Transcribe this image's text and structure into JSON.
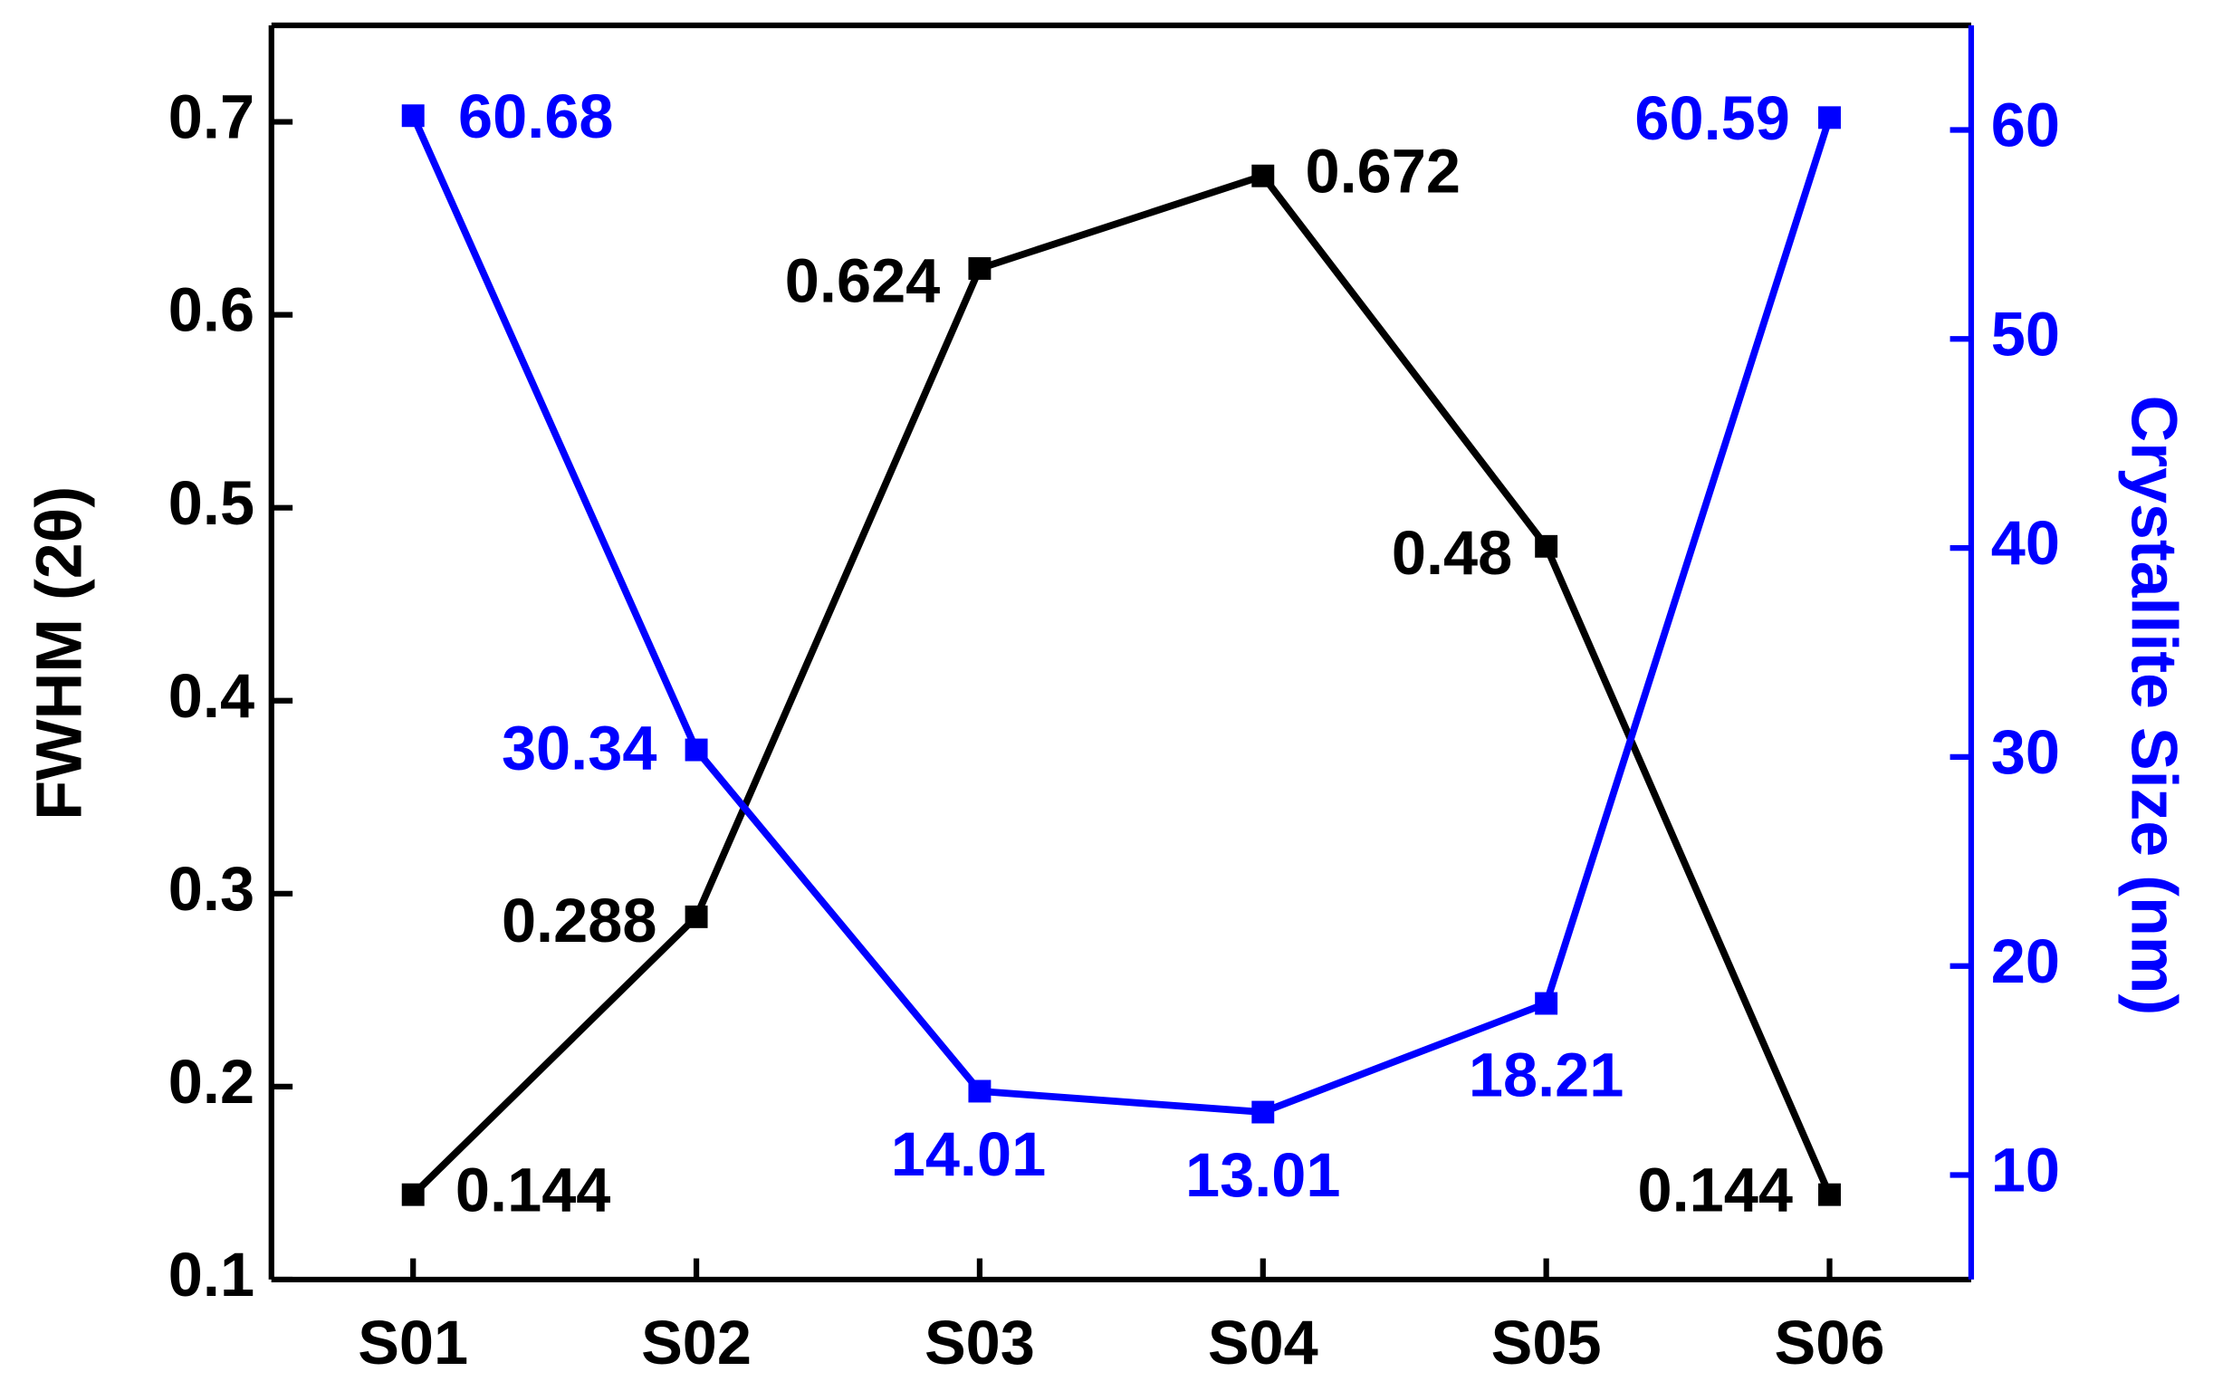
{
  "chart_data": {
    "type": "line",
    "categories": [
      "S01",
      "S02",
      "S03",
      "S04",
      "S05",
      "S06"
    ],
    "ylabel": "FWHM (2θ)",
    "y2label": "Crystallite Size (nm)",
    "ylim": [
      0.1,
      0.75
    ],
    "yticks": [
      0.1,
      0.2,
      0.3,
      0.4,
      0.5,
      0.6,
      0.7
    ],
    "y2lim": [
      5,
      65
    ],
    "y2ticks": [
      10,
      20,
      30,
      40,
      50,
      60
    ],
    "y2color": "#0000ff",
    "series": [
      {
        "color": "#000000",
        "values": [
          0.144,
          0.288,
          0.624,
          0.672,
          0.48,
          0.144
        ]
      },
      {
        "color": "#0000ff",
        "axis": "y2",
        "values": [
          60.68,
          30.34,
          14.01,
          13.01,
          18.21,
          60.59
        ]
      }
    ]
  }
}
